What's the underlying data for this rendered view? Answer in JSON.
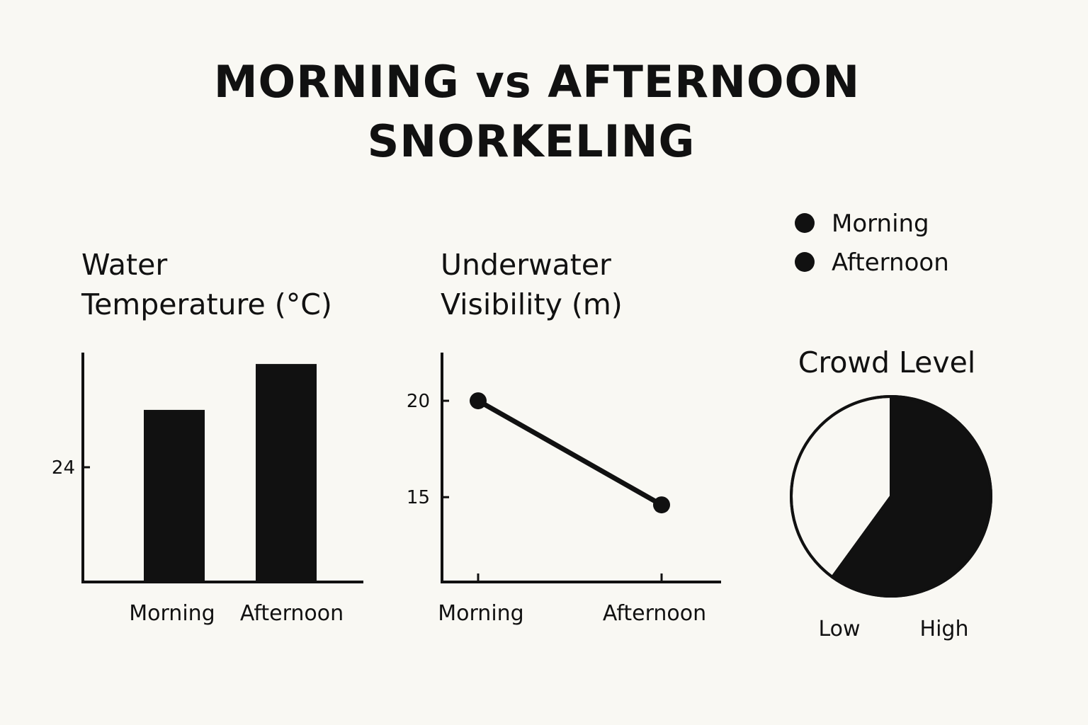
{
  "title_line1": "MORNING vs AFTERNOON",
  "title_line2": "SNORKELING",
  "legend": [
    {
      "label": "Morning",
      "color": "#111111"
    },
    {
      "label": "Afternoon",
      "color": "#111111"
    }
  ],
  "colors": {
    "ink": "#111111",
    "background": "#f9f8f3",
    "pie_low": "#f9f8f3",
    "pie_high": "#111111"
  },
  "chart_data": [
    {
      "type": "bar",
      "title_line1": "Water",
      "title_line2": "Temperature (°C)",
      "categories": [
        "Morning",
        "Afternoon"
      ],
      "values": [
        25.0,
        25.8
      ],
      "ytick": "24",
      "ytick_value": 24,
      "ylim": [
        22.0,
        25.9
      ]
    },
    {
      "type": "line",
      "title_line1": "Underwater",
      "title_line2": "Visibility (m)",
      "categories": [
        "Morning",
        "Afternoon"
      ],
      "values": [
        20.0,
        14.6
      ],
      "yticks": [
        {
          "label": "20",
          "value": 20
        },
        {
          "label": "15",
          "value": 15
        }
      ],
      "ylim": [
        10.6,
        22.5
      ]
    },
    {
      "type": "pie",
      "title": "Crowd Level",
      "slices": [
        {
          "label": "Low",
          "value": 40,
          "color": "#f9f8f3"
        },
        {
          "label": "High",
          "value": 60,
          "color": "#111111"
        }
      ]
    }
  ]
}
